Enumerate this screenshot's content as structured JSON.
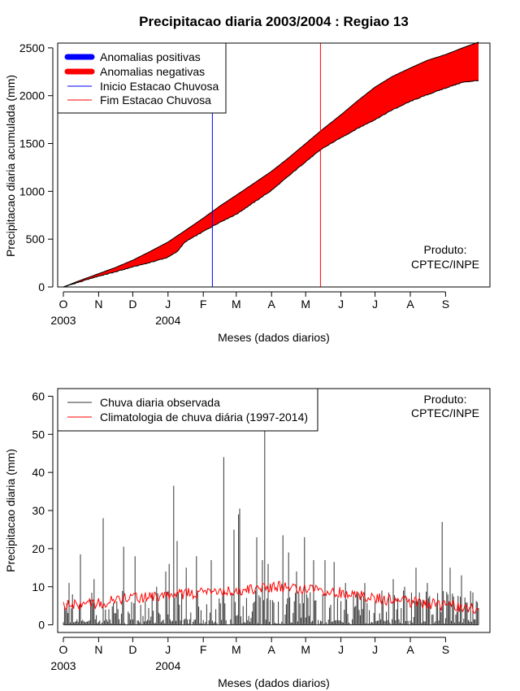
{
  "chart_data": [
    {
      "type": "area",
      "title": "Precipitacao diaria 2003/2004 : Regiao 13",
      "xlabel": "Meses (dados diarios)",
      "ylabel": "Precipitacao diaria acumulada (mm)",
      "ylim": [
        0,
        2550
      ],
      "yticks": [
        0,
        500,
        1000,
        1500,
        2000,
        2500
      ],
      "month_ticks": [
        "O",
        "N",
        "D",
        "J",
        "F",
        "M",
        "A",
        "M",
        "J",
        "J",
        "A",
        "S"
      ],
      "year_labels": [
        {
          "label": "2003",
          "day": 0
        },
        {
          "label": "2004",
          "day": 92
        }
      ],
      "xlim_days": [
        -5,
        375
      ],
      "legend": {
        "position": "top-left",
        "items": [
          {
            "label": "Anomalias positivas",
            "color": "#0000ff",
            "kind": "thick"
          },
          {
            "label": "Anomalias negativas",
            "color": "#ff0000",
            "kind": "thick"
          },
          {
            "label": "Inicio Estacao Chuvosa",
            "color": "#0000ff",
            "kind": "thin"
          },
          {
            "label": "Fim Estacao Chuvosa",
            "color": "#ff0000",
            "kind": "thin"
          }
        ]
      },
      "product_label": [
        "Produto:",
        "CPTEC/INPE"
      ],
      "rainy_season_start_day": 131,
      "rainy_season_end_day": 226,
      "climatology_cumulative": {
        "days": [
          0,
          15,
          30,
          45,
          61,
          76,
          92,
          107,
          123,
          138,
          152,
          167,
          183,
          198,
          213,
          228,
          244,
          259,
          274,
          289,
          305,
          320,
          336,
          351,
          365
        ],
        "values": [
          0,
          70,
          135,
          200,
          280,
          370,
          470,
          590,
          720,
          850,
          960,
          1080,
          1210,
          1350,
          1500,
          1650,
          1800,
          1950,
          2090,
          2200,
          2290,
          2370,
          2430,
          2500,
          2560
        ]
      },
      "observed_cumulative": {
        "days": [
          0,
          15,
          30,
          45,
          61,
          76,
          92,
          100,
          107,
          123,
          138,
          152,
          167,
          183,
          198,
          213,
          228,
          244,
          259,
          274,
          289,
          305,
          320,
          336,
          351,
          365
        ],
        "values": [
          0,
          55,
          110,
          155,
          210,
          255,
          310,
          370,
          470,
          580,
          680,
          760,
          880,
          1010,
          1160,
          1310,
          1450,
          1560,
          1660,
          1750,
          1850,
          1940,
          2010,
          2080,
          2140,
          2160
        ]
      },
      "colors": {
        "negative": "#ff0000",
        "positive": "#0000ff",
        "outline": "#000000"
      }
    },
    {
      "type": "line",
      "xlabel": "Meses (dados diarios)",
      "ylabel": "Precipitacao diaria (mm)",
      "ylim": [
        -2,
        62
      ],
      "yticks": [
        0,
        10,
        20,
        30,
        40,
        50,
        60
      ],
      "month_ticks": [
        "O",
        "N",
        "D",
        "J",
        "F",
        "M",
        "A",
        "M",
        "J",
        "J",
        "A",
        "S"
      ],
      "year_labels": [
        {
          "label": "2003",
          "day": 0
        },
        {
          "label": "2004",
          "day": 92
        }
      ],
      "xlim_days": [
        -5,
        375
      ],
      "legend": {
        "position": "top-left",
        "items": [
          {
            "label": "Chuva diaria observada",
            "color": "#333333"
          },
          {
            "label": "Climatologia de chuva diária (1997-2014)",
            "color": "#ff0000"
          }
        ]
      },
      "product_label": [
        "Produto:",
        "CPTEC/INPE"
      ],
      "observed_daily_peaks": [
        {
          "day": 5,
          "value": 11
        },
        {
          "day": 8,
          "value": 8
        },
        {
          "day": 15,
          "value": 18.5
        },
        {
          "day": 27,
          "value": 12
        },
        {
          "day": 35,
          "value": 28
        },
        {
          "day": 53,
          "value": 20.5
        },
        {
          "day": 63,
          "value": 18
        },
        {
          "day": 82,
          "value": 10
        },
        {
          "day": 90,
          "value": 14
        },
        {
          "day": 93,
          "value": 16
        },
        {
          "day": 97,
          "value": 36.5
        },
        {
          "day": 100,
          "value": 22
        },
        {
          "day": 108,
          "value": 15
        },
        {
          "day": 117,
          "value": 18
        },
        {
          "day": 130,
          "value": 17
        },
        {
          "day": 141,
          "value": 44
        },
        {
          "day": 150,
          "value": 25
        },
        {
          "day": 154,
          "value": 29
        },
        {
          "day": 155,
          "value": 30.5
        },
        {
          "day": 170,
          "value": 23
        },
        {
          "day": 175,
          "value": 17
        },
        {
          "day": 177,
          "value": 52
        },
        {
          "day": 180,
          "value": 16
        },
        {
          "day": 193,
          "value": 23.5
        },
        {
          "day": 198,
          "value": 19
        },
        {
          "day": 205,
          "value": 14
        },
        {
          "day": 212,
          "value": 23
        },
        {
          "day": 220,
          "value": 17
        },
        {
          "day": 230,
          "value": 17
        },
        {
          "day": 238,
          "value": 16.5
        },
        {
          "day": 248,
          "value": 11
        },
        {
          "day": 265,
          "value": 11
        },
        {
          "day": 280,
          "value": 9
        },
        {
          "day": 290,
          "value": 12
        },
        {
          "day": 300,
          "value": 10
        },
        {
          "day": 310,
          "value": 15
        },
        {
          "day": 320,
          "value": 11
        },
        {
          "day": 333,
          "value": 27
        },
        {
          "day": 340,
          "value": 15
        },
        {
          "day": 350,
          "value": 13
        },
        {
          "day": 360,
          "value": 8.5
        }
      ],
      "climatology_daily": {
        "days": [
          0,
          30,
          61,
          92,
          123,
          152,
          183,
          213,
          244,
          274,
          305,
          336,
          365
        ],
        "values": [
          5,
          5.5,
          7,
          8,
          8.5,
          9,
          10,
          9.5,
          8.5,
          7,
          6,
          5,
          4.5
        ]
      },
      "colors": {
        "observed": "#333333",
        "climatology": "#ff0000"
      }
    }
  ]
}
